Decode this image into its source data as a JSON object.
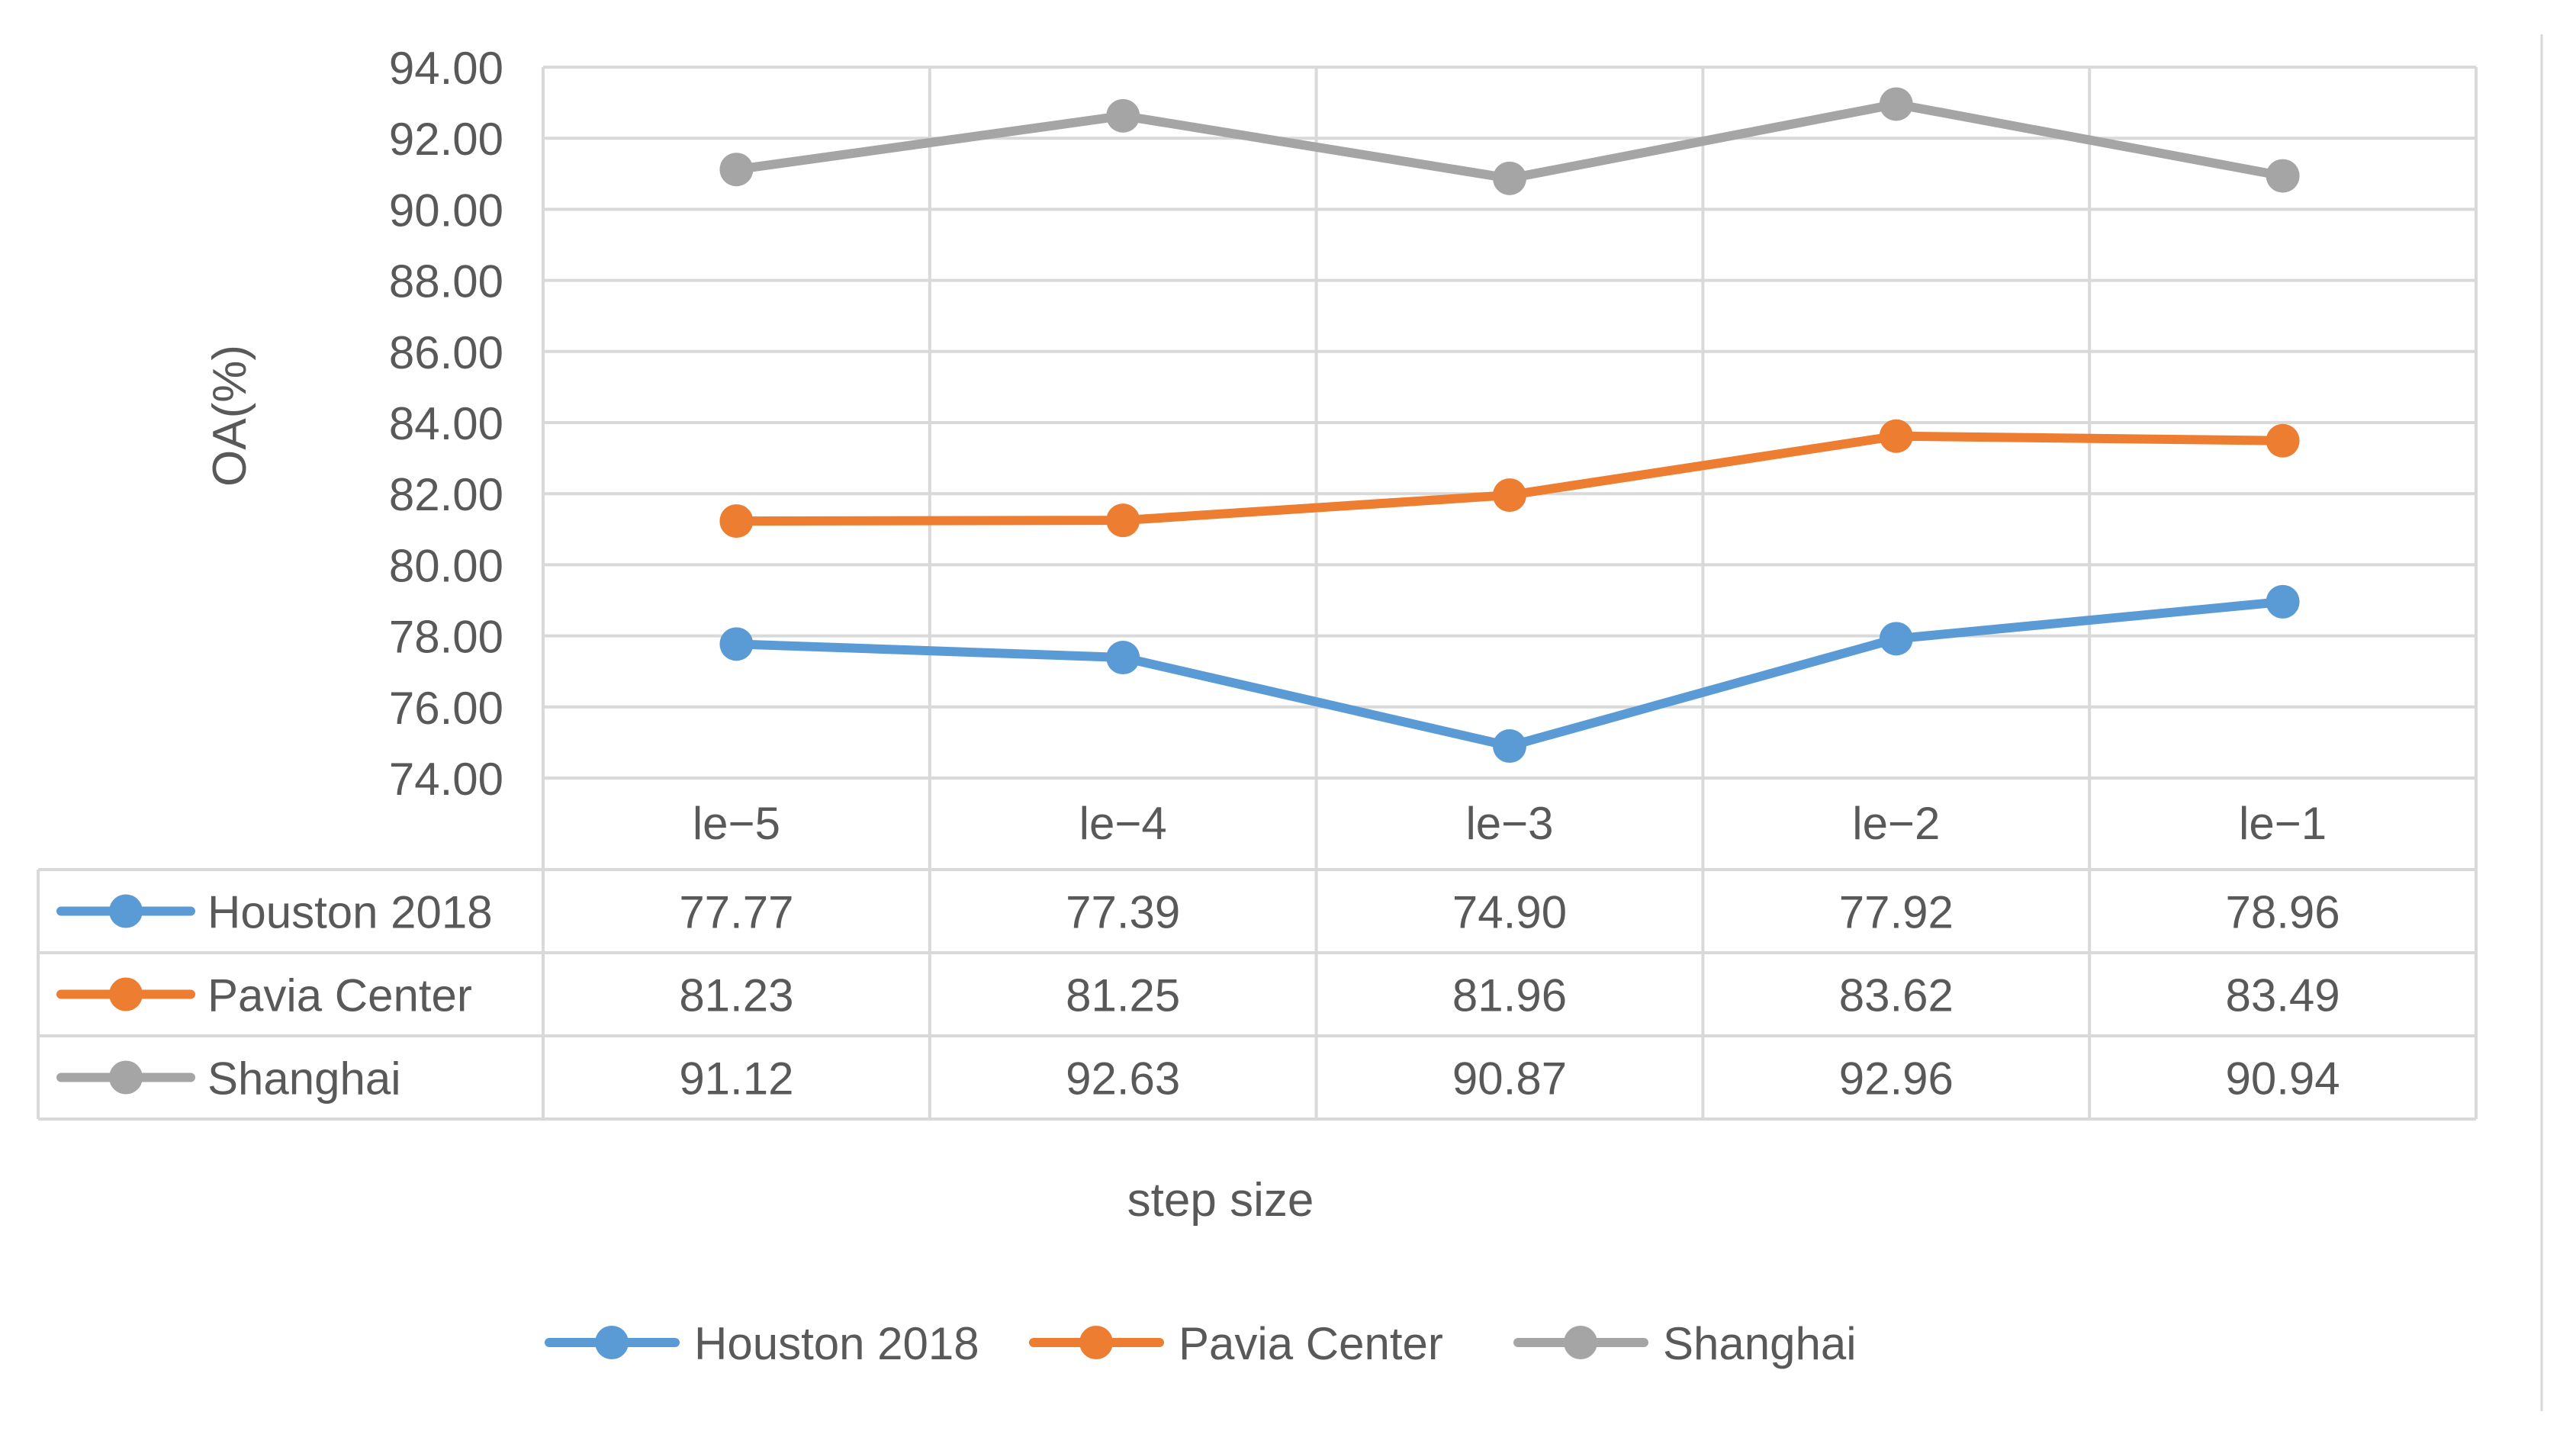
{
  "chart_data": {
    "type": "line",
    "title": "",
    "xlabel": "step size",
    "ylabel": "OA(%)",
    "categories": [
      "le−5",
      "le−4",
      "le−3",
      "le−2",
      "le−1"
    ],
    "ylim": [
      74,
      94
    ],
    "yticks": [
      "74.00",
      "76.00",
      "78.00",
      "80.00",
      "82.00",
      "84.00",
      "86.00",
      "88.00",
      "90.00",
      "92.00",
      "94.00"
    ],
    "grid": true,
    "legend_position": "bottom",
    "data_table": true,
    "series": [
      {
        "name": "Houston 2018",
        "color": "#5B9BD5",
        "values": [
          77.77,
          77.39,
          74.9,
          77.92,
          78.96
        ],
        "labels": [
          "77.77",
          "77.39",
          "74.90",
          "77.92",
          "78.96"
        ]
      },
      {
        "name": "Pavia Center",
        "color": "#ED7D31",
        "values": [
          81.23,
          81.25,
          81.96,
          83.62,
          83.49
        ],
        "labels": [
          "81.23",
          "81.25",
          "81.96",
          "83.62",
          "83.49"
        ]
      },
      {
        "name": "Shanghai",
        "color": "#A5A5A5",
        "values": [
          91.12,
          92.63,
          90.87,
          92.96,
          90.94
        ],
        "labels": [
          "91.12",
          "92.63",
          "90.87",
          "92.96",
          "90.94"
        ]
      }
    ]
  }
}
